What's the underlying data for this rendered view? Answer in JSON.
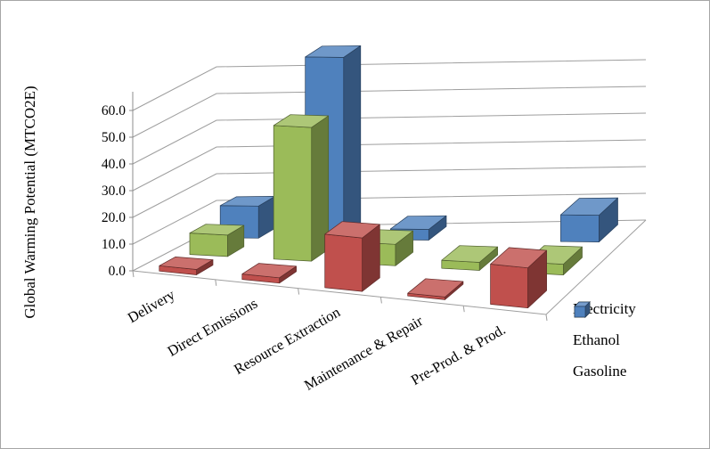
{
  "frame": {
    "background": "#ffffff",
    "border_color": "#a6a6a6"
  },
  "chart_data": {
    "type": "bar",
    "projection": "3d-column",
    "title": "",
    "ylabel": "Global Warming Potential (MTCO2E)",
    "xlabel": "",
    "categories": [
      "Delivery",
      "Direct Emissions",
      "Resource Extraction",
      "Maintenance & Repair",
      "Pre-Prod. & Prod."
    ],
    "series": [
      {
        "name": "Electricity",
        "color": "#C0504D",
        "values": [
          2.0,
          2.0,
          20.0,
          1.0,
          15.0
        ]
      },
      {
        "name": "Ethanol",
        "color": "#9BBB59",
        "values": [
          8.0,
          50.0,
          8.0,
          3.0,
          4.0
        ]
      },
      {
        "name": "Gasoline",
        "color": "#4F81BD",
        "values": [
          12.0,
          68.0,
          4.0,
          0.0,
          10.0
        ]
      }
    ],
    "y_ticks": [
      "0.0",
      "10.0",
      "20.0",
      "30.0",
      "40.0",
      "50.0",
      "60.0"
    ],
    "ylim": [
      0,
      70
    ],
    "tick_step": 10,
    "grid": true,
    "legend_position": "bottom-right",
    "gridline_color": "#9e9e9e",
    "axis_color": "#8c8c8c"
  }
}
